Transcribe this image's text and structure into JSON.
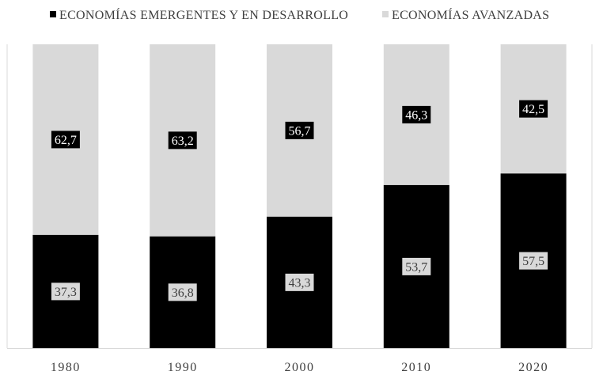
{
  "chart_data": {
    "type": "bar",
    "stacked": true,
    "normalized_percent": true,
    "categories": [
      "1980",
      "1990",
      "2000",
      "2010",
      "2020"
    ],
    "series": [
      {
        "name": "ECONOMÍAS EMERGENTES Y EN DESARROLLO",
        "color": "#000000",
        "label_bg": "#d9d9d9",
        "label_color": "#404040",
        "values": [
          37.3,
          36.8,
          43.3,
          53.7,
          57.5
        ],
        "value_labels": [
          "37,3",
          "36,8",
          "43,3",
          "53,7",
          "57,5"
        ]
      },
      {
        "name": "ECONOMÍAS AVANZADAS",
        "color": "#d9d9d9",
        "label_bg": "#000000",
        "label_color": "#ffffff",
        "values": [
          62.7,
          63.2,
          56.7,
          46.3,
          42.5
        ],
        "value_labels": [
          "62,7",
          "63,2",
          "56,7",
          "46,3",
          "42,5"
        ]
      }
    ],
    "ylim": [
      0,
      100
    ],
    "legend_position": "top",
    "grid": false
  }
}
